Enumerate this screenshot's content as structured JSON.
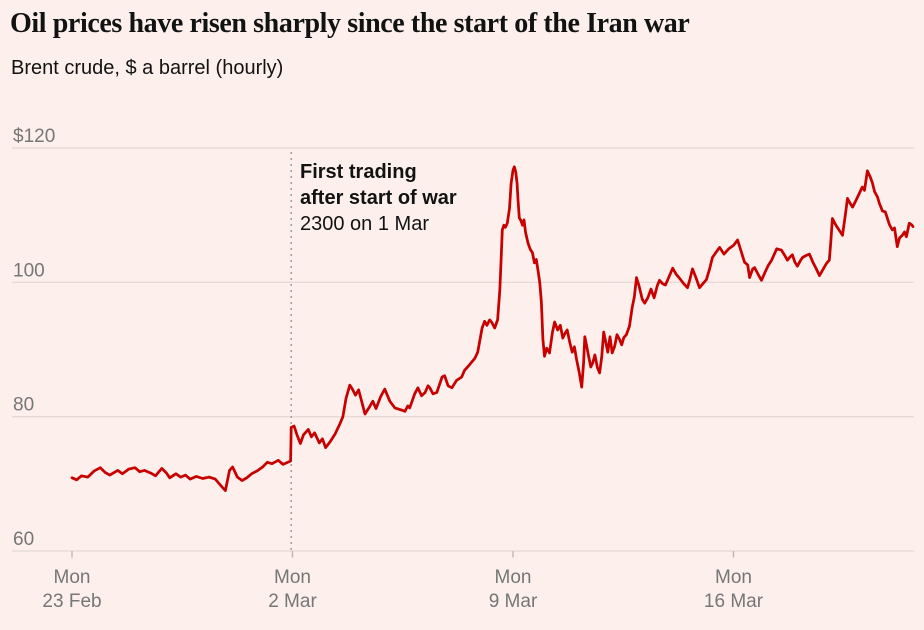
{
  "page": {
    "background_color": "#fdf0ec"
  },
  "header": {
    "title": "Oil prices have risen sharply since the start of the Iran war",
    "subtitle": "Brent crude, $ a barrel (hourly)"
  },
  "annotation": {
    "line1": "First trading",
    "line2": "after start of war",
    "line3": "2300 on 1 Mar"
  },
  "chart_data": {
    "type": "line",
    "title": "Oil prices have risen sharply since the start of the Iran war",
    "subtitle": "Brent crude, $ a barrel (hourly)",
    "ylim": [
      60,
      120
    ],
    "xlim_days": [
      0,
      26.7
    ],
    "grid": "horizontal",
    "legend": "none",
    "yticks": [
      {
        "value": 120,
        "label": "$120"
      },
      {
        "value": 100,
        "label": "100"
      },
      {
        "value": 80,
        "label": "80"
      },
      {
        "value": 60,
        "label": "60"
      }
    ],
    "xticks": [
      {
        "day": 0,
        "weekday": "Mon",
        "date": "23 Feb"
      },
      {
        "day": 7,
        "weekday": "Mon",
        "date": "2 Mar"
      },
      {
        "day": 14,
        "weekday": "Mon",
        "date": "9 Mar"
      },
      {
        "day": 21,
        "weekday": "Mon",
        "date": "16 Mar"
      }
    ],
    "event_line": {
      "day": 6.96,
      "label": [
        "First trading",
        "after start of war",
        "2300 on 1 Mar"
      ]
    },
    "colors": {
      "line": "#c70000",
      "grid": "#ddd2ce",
      "tick": "#bdb3af",
      "axis_text": "#767676",
      "event_line": "#a39e9a",
      "text": "#121212",
      "background": "#fdf0ec"
    },
    "series": [
      {
        "name": "Brent crude",
        "color": "#c70000",
        "points": [
          [
            0.0,
            70.9
          ],
          [
            0.15,
            70.6
          ],
          [
            0.3,
            71.2
          ],
          [
            0.5,
            71.0
          ],
          [
            0.7,
            71.9
          ],
          [
            0.9,
            72.4
          ],
          [
            1.05,
            71.7
          ],
          [
            1.2,
            71.3
          ],
          [
            1.45,
            72.0
          ],
          [
            1.6,
            71.5
          ],
          [
            1.8,
            72.2
          ],
          [
            2.0,
            72.4
          ],
          [
            2.15,
            71.8
          ],
          [
            2.3,
            72.0
          ],
          [
            2.5,
            71.6
          ],
          [
            2.65,
            71.2
          ],
          [
            2.85,
            72.3
          ],
          [
            3.0,
            71.6
          ],
          [
            3.1,
            70.9
          ],
          [
            3.3,
            71.5
          ],
          [
            3.45,
            71.0
          ],
          [
            3.6,
            71.3
          ],
          [
            3.75,
            70.7
          ],
          [
            3.95,
            71.1
          ],
          [
            4.15,
            70.8
          ],
          [
            4.35,
            71.0
          ],
          [
            4.55,
            70.7
          ],
          [
            4.75,
            69.6
          ],
          [
            4.87,
            69.0
          ],
          [
            5.0,
            72.0
          ],
          [
            5.1,
            72.5
          ],
          [
            5.25,
            71.0
          ],
          [
            5.4,
            70.5
          ],
          [
            5.55,
            70.9
          ],
          [
            5.7,
            71.5
          ],
          [
            5.9,
            72.0
          ],
          [
            6.05,
            72.5
          ],
          [
            6.2,
            73.2
          ],
          [
            6.35,
            73.0
          ],
          [
            6.55,
            73.5
          ],
          [
            6.7,
            72.9
          ],
          [
            6.85,
            73.2
          ],
          [
            6.94,
            73.4
          ],
          [
            6.96,
            78.4
          ],
          [
            7.05,
            78.6
          ],
          [
            7.15,
            77.2
          ],
          [
            7.25,
            76.0
          ],
          [
            7.35,
            77.3
          ],
          [
            7.5,
            78.1
          ],
          [
            7.6,
            77.0
          ],
          [
            7.7,
            77.6
          ],
          [
            7.85,
            76.1
          ],
          [
            7.95,
            76.7
          ],
          [
            8.05,
            75.4
          ],
          [
            8.2,
            76.3
          ],
          [
            8.35,
            77.4
          ],
          [
            8.5,
            78.9
          ],
          [
            8.6,
            80.0
          ],
          [
            8.7,
            82.7
          ],
          [
            8.82,
            84.7
          ],
          [
            8.9,
            84.1
          ],
          [
            9.0,
            83.2
          ],
          [
            9.1,
            84.0
          ],
          [
            9.3,
            80.4
          ],
          [
            9.45,
            81.5
          ],
          [
            9.55,
            82.3
          ],
          [
            9.65,
            81.2
          ],
          [
            9.8,
            83.0
          ],
          [
            9.93,
            84.1
          ],
          [
            10.09,
            82.3
          ],
          [
            10.25,
            81.3
          ],
          [
            10.45,
            81.0
          ],
          [
            10.57,
            80.8
          ],
          [
            10.66,
            81.6
          ],
          [
            10.72,
            81.3
          ],
          [
            10.88,
            83.4
          ],
          [
            10.98,
            84.3
          ],
          [
            11.1,
            83.1
          ],
          [
            11.21,
            83.6
          ],
          [
            11.3,
            84.6
          ],
          [
            11.36,
            84.3
          ],
          [
            11.46,
            83.4
          ],
          [
            11.58,
            83.6
          ],
          [
            11.75,
            85.9
          ],
          [
            11.83,
            86.1
          ],
          [
            11.94,
            84.6
          ],
          [
            12.06,
            84.3
          ],
          [
            12.21,
            85.4
          ],
          [
            12.37,
            85.9
          ],
          [
            12.46,
            86.9
          ],
          [
            12.56,
            87.4
          ],
          [
            12.79,
            88.7
          ],
          [
            12.88,
            89.6
          ],
          [
            12.95,
            91.4
          ],
          [
            13.02,
            93.2
          ],
          [
            13.1,
            94.2
          ],
          [
            13.17,
            93.6
          ],
          [
            13.26,
            94.4
          ],
          [
            13.33,
            94.0
          ],
          [
            13.42,
            93.2
          ],
          [
            13.51,
            94.4
          ],
          [
            13.58,
            98.8
          ],
          [
            13.62,
            103.0
          ],
          [
            13.66,
            107.8
          ],
          [
            13.71,
            108.5
          ],
          [
            13.76,
            108.2
          ],
          [
            13.82,
            108.8
          ],
          [
            13.89,
            111.0
          ],
          [
            13.94,
            114.7
          ],
          [
            14.0,
            116.7
          ],
          [
            14.04,
            117.2
          ],
          [
            14.09,
            116.4
          ],
          [
            14.13,
            114.7
          ],
          [
            14.16,
            112.3
          ],
          [
            14.2,
            109.6
          ],
          [
            14.25,
            109.2
          ],
          [
            14.3,
            108.5
          ],
          [
            14.35,
            109.3
          ],
          [
            14.4,
            107.4
          ],
          [
            14.48,
            105.8
          ],
          [
            14.55,
            104.9
          ],
          [
            14.62,
            104.4
          ],
          [
            14.68,
            102.9
          ],
          [
            14.74,
            103.4
          ],
          [
            14.8,
            101.6
          ],
          [
            14.85,
            99.9
          ],
          [
            14.9,
            97.0
          ],
          [
            14.95,
            91.5
          ],
          [
            15.0,
            89.0
          ],
          [
            15.07,
            90.2
          ],
          [
            15.16,
            89.5
          ],
          [
            15.25,
            92.5
          ],
          [
            15.32,
            94.1
          ],
          [
            15.42,
            92.9
          ],
          [
            15.5,
            93.6
          ],
          [
            15.58,
            91.7
          ],
          [
            15.65,
            92.4
          ],
          [
            15.72,
            92.9
          ],
          [
            15.8,
            91.1
          ],
          [
            15.88,
            89.6
          ],
          [
            15.95,
            90.4
          ],
          [
            16.02,
            88.5
          ],
          [
            16.1,
            86.6
          ],
          [
            16.18,
            84.4
          ],
          [
            16.24,
            88.0
          ],
          [
            16.28,
            91.9
          ],
          [
            16.34,
            90.5
          ],
          [
            16.4,
            89.0
          ],
          [
            16.47,
            87.4
          ],
          [
            16.53,
            88.0
          ],
          [
            16.6,
            89.2
          ],
          [
            16.68,
            87.3
          ],
          [
            16.75,
            86.5
          ],
          [
            16.82,
            89.0
          ],
          [
            16.88,
            92.6
          ],
          [
            16.95,
            91.0
          ],
          [
            17.01,
            89.6
          ],
          [
            17.08,
            91.9
          ],
          [
            17.15,
            89.5
          ],
          [
            17.23,
            90.5
          ],
          [
            17.3,
            92.2
          ],
          [
            17.38,
            91.5
          ],
          [
            17.45,
            90.7
          ],
          [
            17.52,
            91.8
          ],
          [
            17.6,
            92.2
          ],
          [
            17.7,
            93.5
          ],
          [
            17.78,
            96.2
          ],
          [
            17.85,
            97.8
          ],
          [
            17.92,
            100.7
          ],
          [
            18.0,
            99.5
          ],
          [
            18.1,
            97.5
          ],
          [
            18.18,
            96.9
          ],
          [
            18.28,
            97.7
          ],
          [
            18.38,
            99.0
          ],
          [
            18.48,
            97.7
          ],
          [
            18.58,
            99.5
          ],
          [
            18.65,
            100.3
          ],
          [
            18.75,
            99.8
          ],
          [
            18.84,
            99.6
          ],
          [
            18.95,
            100.8
          ],
          [
            19.07,
            102.1
          ],
          [
            19.18,
            101.2
          ],
          [
            19.29,
            100.6
          ],
          [
            19.42,
            99.8
          ],
          [
            19.54,
            99.2
          ],
          [
            19.62,
            100.5
          ],
          [
            19.7,
            102.0
          ],
          [
            19.8,
            100.8
          ],
          [
            19.92,
            99.2
          ],
          [
            20.03,
            99.8
          ],
          [
            20.14,
            100.4
          ],
          [
            20.24,
            102.0
          ],
          [
            20.33,
            103.7
          ],
          [
            20.45,
            104.5
          ],
          [
            20.56,
            105.2
          ],
          [
            20.7,
            104.2
          ],
          [
            20.85,
            105.0
          ],
          [
            21.0,
            105.5
          ],
          [
            21.13,
            106.3
          ],
          [
            21.25,
            104.5
          ],
          [
            21.35,
            103.0
          ],
          [
            21.45,
            102.6
          ],
          [
            21.51,
            100.7
          ],
          [
            21.61,
            102.0
          ],
          [
            21.67,
            102.2
          ],
          [
            21.78,
            101.2
          ],
          [
            21.89,
            100.3
          ],
          [
            22.0,
            101.5
          ],
          [
            22.1,
            102.5
          ],
          [
            22.21,
            103.3
          ],
          [
            22.37,
            105.0
          ],
          [
            22.52,
            104.8
          ],
          [
            22.63,
            104.0
          ],
          [
            22.71,
            103.3
          ],
          [
            22.8,
            103.8
          ],
          [
            22.87,
            104.1
          ],
          [
            22.95,
            103.0
          ],
          [
            23.03,
            102.4
          ],
          [
            23.12,
            103.2
          ],
          [
            23.19,
            103.7
          ],
          [
            23.3,
            104.0
          ],
          [
            23.41,
            104.2
          ],
          [
            23.52,
            103.0
          ],
          [
            23.63,
            102.0
          ],
          [
            23.73,
            101.0
          ],
          [
            23.85,
            102.0
          ],
          [
            23.95,
            102.8
          ],
          [
            24.04,
            103.3
          ],
          [
            24.09,
            106.0
          ],
          [
            24.14,
            109.5
          ],
          [
            24.25,
            108.5
          ],
          [
            24.35,
            107.8
          ],
          [
            24.46,
            107.0
          ],
          [
            24.55,
            110.0
          ],
          [
            24.62,
            112.5
          ],
          [
            24.7,
            111.8
          ],
          [
            24.78,
            111.2
          ],
          [
            24.9,
            112.3
          ],
          [
            25.0,
            113.3
          ],
          [
            25.09,
            114.2
          ],
          [
            25.16,
            113.7
          ],
          [
            25.25,
            116.6
          ],
          [
            25.35,
            115.6
          ],
          [
            25.41,
            114.8
          ],
          [
            25.48,
            113.5
          ],
          [
            25.57,
            112.7
          ],
          [
            25.63,
            111.8
          ],
          [
            25.73,
            110.6
          ],
          [
            25.82,
            110.5
          ],
          [
            25.95,
            108.6
          ],
          [
            26.04,
            107.8
          ],
          [
            26.11,
            108.1
          ],
          [
            26.2,
            105.3
          ],
          [
            26.27,
            106.6
          ],
          [
            26.36,
            107.0
          ],
          [
            26.43,
            107.5
          ],
          [
            26.49,
            106.8
          ],
          [
            26.58,
            108.8
          ],
          [
            26.65,
            108.6
          ],
          [
            26.7,
            108.3
          ]
        ]
      }
    ]
  }
}
